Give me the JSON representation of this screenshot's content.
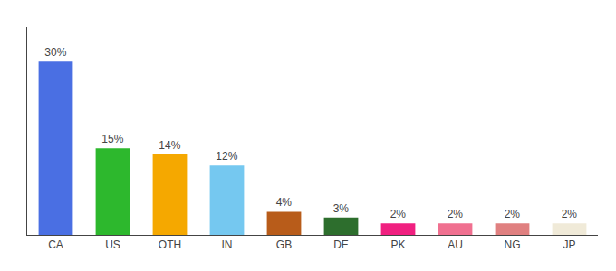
{
  "chart_data": {
    "type": "bar",
    "categories": [
      "CA",
      "US",
      "OTH",
      "IN",
      "GB",
      "DE",
      "PK",
      "AU",
      "NG",
      "JP"
    ],
    "values": [
      30,
      15,
      14,
      12,
      4,
      3,
      2,
      2,
      2,
      2
    ],
    "value_labels": [
      "30%",
      "15%",
      "14%",
      "12%",
      "4%",
      "3%",
      "2%",
      "2%",
      "2%",
      "2%"
    ],
    "colors": [
      "#4a6fe3",
      "#2db82d",
      "#f5a800",
      "#75c8f0",
      "#b85c1a",
      "#2d6e2d",
      "#f02080",
      "#f07090",
      "#e08080",
      "#f0ead8"
    ],
    "ylim": [
      0,
      36
    ],
    "yticks": [],
    "grid": false,
    "data_labels": true,
    "tick_labels": "x"
  }
}
